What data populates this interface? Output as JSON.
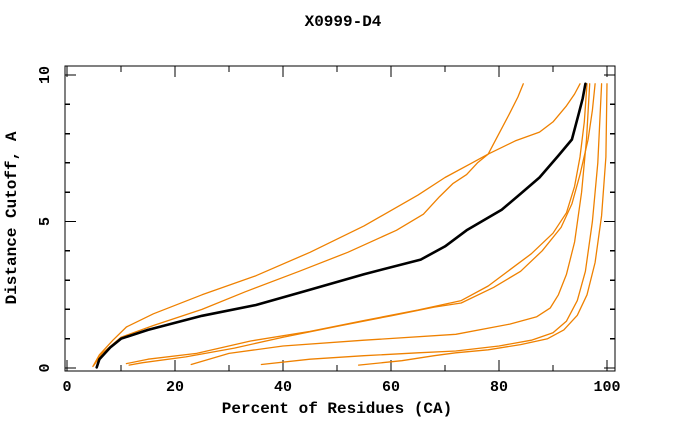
{
  "figure": {
    "background": "#ffffff"
  },
  "chart_data": {
    "type": "line",
    "title": "X0999-D4",
    "xlabel": "Percent of Residues (CA)",
    "ylabel": "Distance Cutoff, A",
    "xlim": [
      0,
      100
    ],
    "ylim": [
      0,
      10
    ],
    "grid": false,
    "legend": "none",
    "x_major_ticks": [
      0,
      20,
      40,
      60,
      80,
      100
    ],
    "x_minor_ticks": [
      10,
      30,
      50,
      70,
      90
    ],
    "y_major_ticks": [
      0,
      5,
      10
    ],
    "y_minor_ticks": [
      1,
      2,
      3,
      4,
      6,
      7,
      8,
      9
    ],
    "x_tick_labels": [
      "0",
      "20",
      "40",
      "60",
      "80",
      "100"
    ],
    "y_tick_labels": [
      "0",
      "5",
      "10"
    ],
    "colors": {
      "highlight": "#000000",
      "models": "#ef8100",
      "frame": "#000000",
      "background": "#ffffff"
    },
    "series": [
      {
        "name": "model-orange-1",
        "color": "#ef8100",
        "width": 1.3,
        "points": [
          [
            4.8,
            0.05
          ],
          [
            6,
            0.45
          ],
          [
            8.5,
            0.95
          ],
          [
            11,
            1.4
          ],
          [
            16,
            1.85
          ],
          [
            25,
            2.5
          ],
          [
            35,
            3.15
          ],
          [
            45,
            3.95
          ],
          [
            55,
            4.85
          ],
          [
            65,
            5.9
          ],
          [
            70,
            6.5
          ],
          [
            75,
            7.0
          ],
          [
            78,
            7.3
          ],
          [
            83,
            7.75
          ],
          [
            87.5,
            8.05
          ],
          [
            90,
            8.4
          ],
          [
            92.5,
            8.95
          ],
          [
            94,
            9.35
          ],
          [
            95,
            9.7
          ]
        ]
      },
      {
        "name": "model-orange-2",
        "color": "#ef8100",
        "width": 1.3,
        "points": [
          [
            5,
            0.1
          ],
          [
            6.5,
            0.5
          ],
          [
            10,
            1.05
          ],
          [
            16,
            1.45
          ],
          [
            25,
            2.0
          ],
          [
            33,
            2.6
          ],
          [
            43,
            3.3
          ],
          [
            52,
            3.95
          ],
          [
            61,
            4.7
          ],
          [
            66,
            5.25
          ],
          [
            69,
            5.85
          ],
          [
            71.5,
            6.3
          ],
          [
            74,
            6.6
          ],
          [
            76,
            7.0
          ],
          [
            78,
            7.3
          ],
          [
            80,
            8.0
          ],
          [
            82,
            8.7
          ],
          [
            83.5,
            9.25
          ],
          [
            84.5,
            9.7
          ]
        ]
      },
      {
        "name": "model-orange-3",
        "color": "#ef8100",
        "width": 1.3,
        "points": [
          [
            11,
            0.15
          ],
          [
            15,
            0.3
          ],
          [
            24,
            0.5
          ],
          [
            34,
            0.92
          ],
          [
            45,
            1.25
          ],
          [
            55,
            1.62
          ],
          [
            65,
            1.98
          ],
          [
            73,
            2.3
          ],
          [
            78,
            2.8
          ],
          [
            82,
            3.35
          ],
          [
            86,
            3.9
          ],
          [
            90,
            4.6
          ],
          [
            92.5,
            5.3
          ],
          [
            94,
            6.2
          ],
          [
            95,
            7.2
          ],
          [
            95.8,
            8.4
          ],
          [
            96.3,
            9.7
          ]
        ]
      },
      {
        "name": "model-orange-4",
        "color": "#ef8100",
        "width": 1.3,
        "points": [
          [
            11.5,
            0.1
          ],
          [
            14,
            0.18
          ],
          [
            22,
            0.38
          ],
          [
            31,
            0.68
          ],
          [
            40,
            1.05
          ],
          [
            50,
            1.42
          ],
          [
            60,
            1.78
          ],
          [
            68,
            2.08
          ],
          [
            73,
            2.22
          ],
          [
            79,
            2.75
          ],
          [
            84,
            3.3
          ],
          [
            88,
            4.0
          ],
          [
            91.5,
            4.8
          ],
          [
            93.5,
            5.6
          ],
          [
            95,
            6.6
          ],
          [
            96.5,
            7.8
          ],
          [
            97.3,
            8.8
          ],
          [
            97.8,
            9.7
          ]
        ]
      },
      {
        "name": "model-orange-5",
        "color": "#ef8100",
        "width": 1.3,
        "points": [
          [
            23,
            0.12
          ],
          [
            30,
            0.5
          ],
          [
            40,
            0.75
          ],
          [
            55,
            0.95
          ],
          [
            72,
            1.15
          ],
          [
            82,
            1.5
          ],
          [
            87,
            1.75
          ],
          [
            89.5,
            2.05
          ],
          [
            91,
            2.5
          ],
          [
            92.5,
            3.2
          ],
          [
            94,
            4.3
          ],
          [
            95.3,
            6.0
          ],
          [
            96.2,
            7.8
          ],
          [
            96.8,
            9.7
          ]
        ]
      },
      {
        "name": "model-orange-6",
        "color": "#ef8100",
        "width": 1.3,
        "points": [
          [
            36,
            0.12
          ],
          [
            45,
            0.3
          ],
          [
            55,
            0.42
          ],
          [
            65,
            0.52
          ],
          [
            72,
            0.58
          ],
          [
            80,
            0.75
          ],
          [
            86,
            0.95
          ],
          [
            90,
            1.2
          ],
          [
            92.5,
            1.6
          ],
          [
            94.5,
            2.3
          ],
          [
            96,
            3.3
          ],
          [
            97.3,
            5.0
          ],
          [
            98.3,
            7.0
          ],
          [
            99,
            9.7
          ]
        ]
      },
      {
        "name": "model-orange-7",
        "color": "#ef8100",
        "width": 1.3,
        "points": [
          [
            54,
            0.1
          ],
          [
            62,
            0.25
          ],
          [
            68,
            0.42
          ],
          [
            72,
            0.52
          ],
          [
            78,
            0.62
          ],
          [
            84,
            0.8
          ],
          [
            89,
            1.0
          ],
          [
            92,
            1.3
          ],
          [
            94.5,
            1.8
          ],
          [
            96.3,
            2.5
          ],
          [
            97.8,
            3.6
          ],
          [
            99,
            5.2
          ],
          [
            99.8,
            7.2
          ],
          [
            100,
            9.7
          ]
        ]
      },
      {
        "name": "model-highlighted-black",
        "color": "#000000",
        "width": 2.6,
        "points": [
          [
            5.5,
            0.02
          ],
          [
            6,
            0.3
          ],
          [
            8,
            0.7
          ],
          [
            10,
            1.0
          ],
          [
            15,
            1.3
          ],
          [
            25,
            1.78
          ],
          [
            35,
            2.15
          ],
          [
            44,
            2.62
          ],
          [
            55,
            3.2
          ],
          [
            65.5,
            3.7
          ],
          [
            70,
            4.15
          ],
          [
            74,
            4.7
          ],
          [
            80.5,
            5.4
          ],
          [
            84,
            5.95
          ],
          [
            87.5,
            6.5
          ],
          [
            91,
            7.25
          ],
          [
            93.5,
            7.8
          ],
          [
            94.8,
            8.7
          ],
          [
            95.5,
            9.2
          ],
          [
            96,
            9.7
          ]
        ]
      }
    ]
  }
}
